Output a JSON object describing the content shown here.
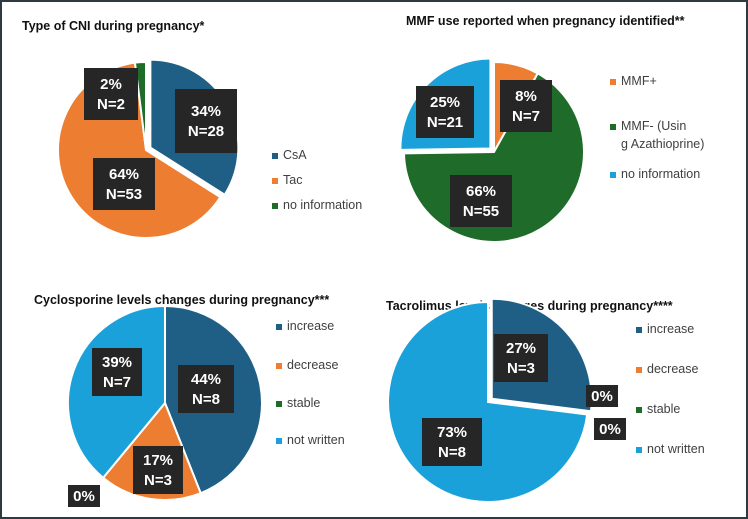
{
  "chart_data": [
    {
      "type": "pie",
      "title": "Type of CNI  during pregnancy*",
      "categories": [
        "CsA",
        "Tac",
        "no information"
      ],
      "values": [
        34,
        64,
        2
      ],
      "counts": [
        28,
        53,
        2
      ],
      "labels": [
        [
          "34%",
          "N=28"
        ],
        [
          "64%",
          "N=53"
        ],
        [
          "2%",
          "N=2"
        ]
      ],
      "colors": [
        "#1f5f85",
        "#ed7d31",
        "#1e6b2a"
      ],
      "legend": "right"
    },
    {
      "type": "pie",
      "title": "MMF use reported when pregnancy identified**",
      "categories": [
        "MMF+",
        "MMF- (Using Azathioprine)",
        "no information"
      ],
      "values": [
        8,
        66,
        25
      ],
      "counts": [
        7,
        55,
        21
      ],
      "labels": [
        [
          "8%",
          "N=7"
        ],
        [
          "66%",
          "N=55"
        ],
        [
          "25%",
          "N=21"
        ]
      ],
      "colors": [
        "#ed7d31",
        "#1e6b2a",
        "#1ba1d9"
      ],
      "legend": "right"
    },
    {
      "type": "pie",
      "title": "Cyclosporine levels changes during pregnancy***",
      "categories": [
        "increase",
        "decrease",
        "stable",
        "not written"
      ],
      "values": [
        44,
        17,
        0,
        39
      ],
      "counts": [
        8,
        3,
        0,
        7
      ],
      "labels": [
        [
          "44%",
          "N=8"
        ],
        [
          "17%",
          "N=3"
        ],
        [
          "0%"
        ],
        [
          "39%",
          "N=7"
        ]
      ],
      "colors": [
        "#1f5f85",
        "#ed7d31",
        "#1e6b2a",
        "#1ba1d9"
      ],
      "legend": "right"
    },
    {
      "type": "pie",
      "title": "Tacrolimus levels changes during pregnancy****",
      "categories": [
        "increase",
        "decrease",
        "stable",
        "not written"
      ],
      "values": [
        27,
        0,
        0,
        73
      ],
      "counts": [
        3,
        0,
        0,
        8
      ],
      "labels": [
        [
          "27%",
          "N=3"
        ],
        [
          "0%"
        ],
        [
          "0%"
        ],
        [
          "73%",
          "N=8"
        ]
      ],
      "colors": [
        "#1f5f85",
        "#ed7d31",
        "#1e6b2a",
        "#1ba1d9"
      ],
      "legend": "right"
    }
  ]
}
